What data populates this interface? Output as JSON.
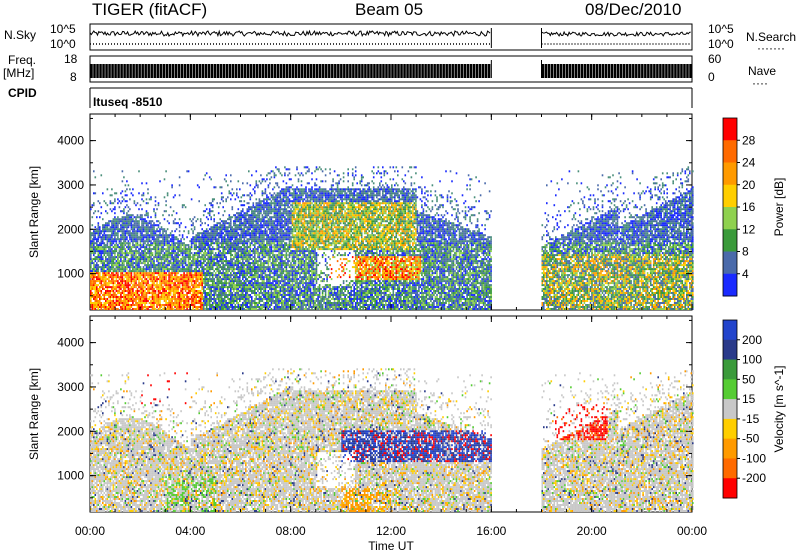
{
  "header": {
    "station": "TIGER (fitACF)",
    "beam": "Beam 05",
    "date": "08/Dec/2010"
  },
  "aux_labels": {
    "nsky": "N.Sky",
    "freq": "Freq.",
    "freq_unit": "[MHz]",
    "cpid": "CPID",
    "nsearch": "N.Search",
    "nsearch_dots": "·······",
    "nave": "Nave",
    "nave_dots": "····",
    "cpid_value": "Ituseq -8510"
  },
  "aux_ticks": {
    "nsky_top": "10^5",
    "nsky_bottom": "10^0",
    "nsearch_top": "10^5",
    "nsearch_bottom": "10^0",
    "freq_top": "18",
    "freq_bottom": "8",
    "nave_top": "60",
    "nave_bottom": "0"
  },
  "colors": {
    "red": "#ff0000",
    "orange_red": "#ff6a00",
    "orange": "#ff9a00",
    "yellow": "#ffce00",
    "light_green": "#8fd14f",
    "green": "#3a9a3a",
    "sea_green": "#4a8f7a",
    "steel": "#4a6aaa",
    "blue": "#1a2aff",
    "grey": "#c8c8c8",
    "vel_blue": "#2244cc",
    "vel_navy": "#2a3a8a",
    "vel_green": "#55cc33"
  },
  "chart_data": [
    {
      "type": "heatmap",
      "panel": "power",
      "xlabel": "",
      "ylabel": "Slant Range [km]",
      "yticks": [
        "1000",
        "2000",
        "3000",
        "4000"
      ],
      "ylim": [
        180,
        4600
      ],
      "xlim": [
        0,
        24
      ],
      "data_gap": [
        16,
        18
      ],
      "colorbar": {
        "label": "Power [dB]",
        "ticks": [
          "4",
          "8",
          "12",
          "16",
          "20",
          "24",
          "28"
        ],
        "colors": [
          "#1a2aff",
          "#4a6aaa",
          "#3a9a3a",
          "#8fd14f",
          "#ffce00",
          "#ff9a00",
          "#ff6a00",
          "#ff0000"
        ]
      },
      "regions": [
        {
          "x": [
            0,
            4
          ],
          "y": [
            300,
            1000
          ],
          "level": "high"
        },
        {
          "x": [
            4,
            8
          ],
          "y": [
            700,
            1600
          ],
          "level": "mid"
        },
        {
          "x": [
            8,
            13
          ],
          "y": [
            1500,
            2600
          ],
          "level": "mid-high"
        },
        {
          "x": [
            9.5,
            13
          ],
          "y": [
            900,
            1300
          ],
          "level": "high"
        },
        {
          "x": [
            18,
            24
          ],
          "y": [
            400,
            1400
          ],
          "level": "mid"
        },
        {
          "x": [
            4,
            16
          ],
          "y": [
            2600,
            3200
          ],
          "level": "low"
        }
      ]
    },
    {
      "type": "heatmap",
      "panel": "velocity",
      "xlabel": "Time UT",
      "ylabel": "Slant Range [km]",
      "xticks": [
        "00:00",
        "04:00",
        "08:00",
        "12:00",
        "16:00",
        "20:00",
        "00:00"
      ],
      "yticks": [
        "1000",
        "2000",
        "3000",
        "4000"
      ],
      "ylim": [
        180,
        4600
      ],
      "xlim": [
        0,
        24
      ],
      "data_gap": [
        16,
        18
      ],
      "colorbar": {
        "label": "Velocity [m s^-1]",
        "ticks": [
          "200",
          "100",
          "50",
          "15",
          "-15",
          "-50",
          "-100",
          "-200"
        ],
        "colors": [
          "#2244cc",
          "#2a3a8a",
          "#3a9a3a",
          "#55cc33",
          "#c8c8c8",
          "#ffce00",
          "#ff9a00",
          "#ff6a00",
          "#ff0000"
        ]
      },
      "regions": [
        {
          "x": [
            0,
            8
          ],
          "y": [
            300,
            1600
          ],
          "level": "near-zero"
        },
        {
          "x": [
            10,
            16
          ],
          "y": [
            1300,
            2000
          ],
          "level": "positive"
        },
        {
          "x": [
            18.5,
            20.5
          ],
          "y": [
            1800,
            2600
          ],
          "level": "negative"
        },
        {
          "x": [
            2,
            4
          ],
          "y": [
            2600,
            3300
          ],
          "level": "negative"
        }
      ]
    }
  ]
}
